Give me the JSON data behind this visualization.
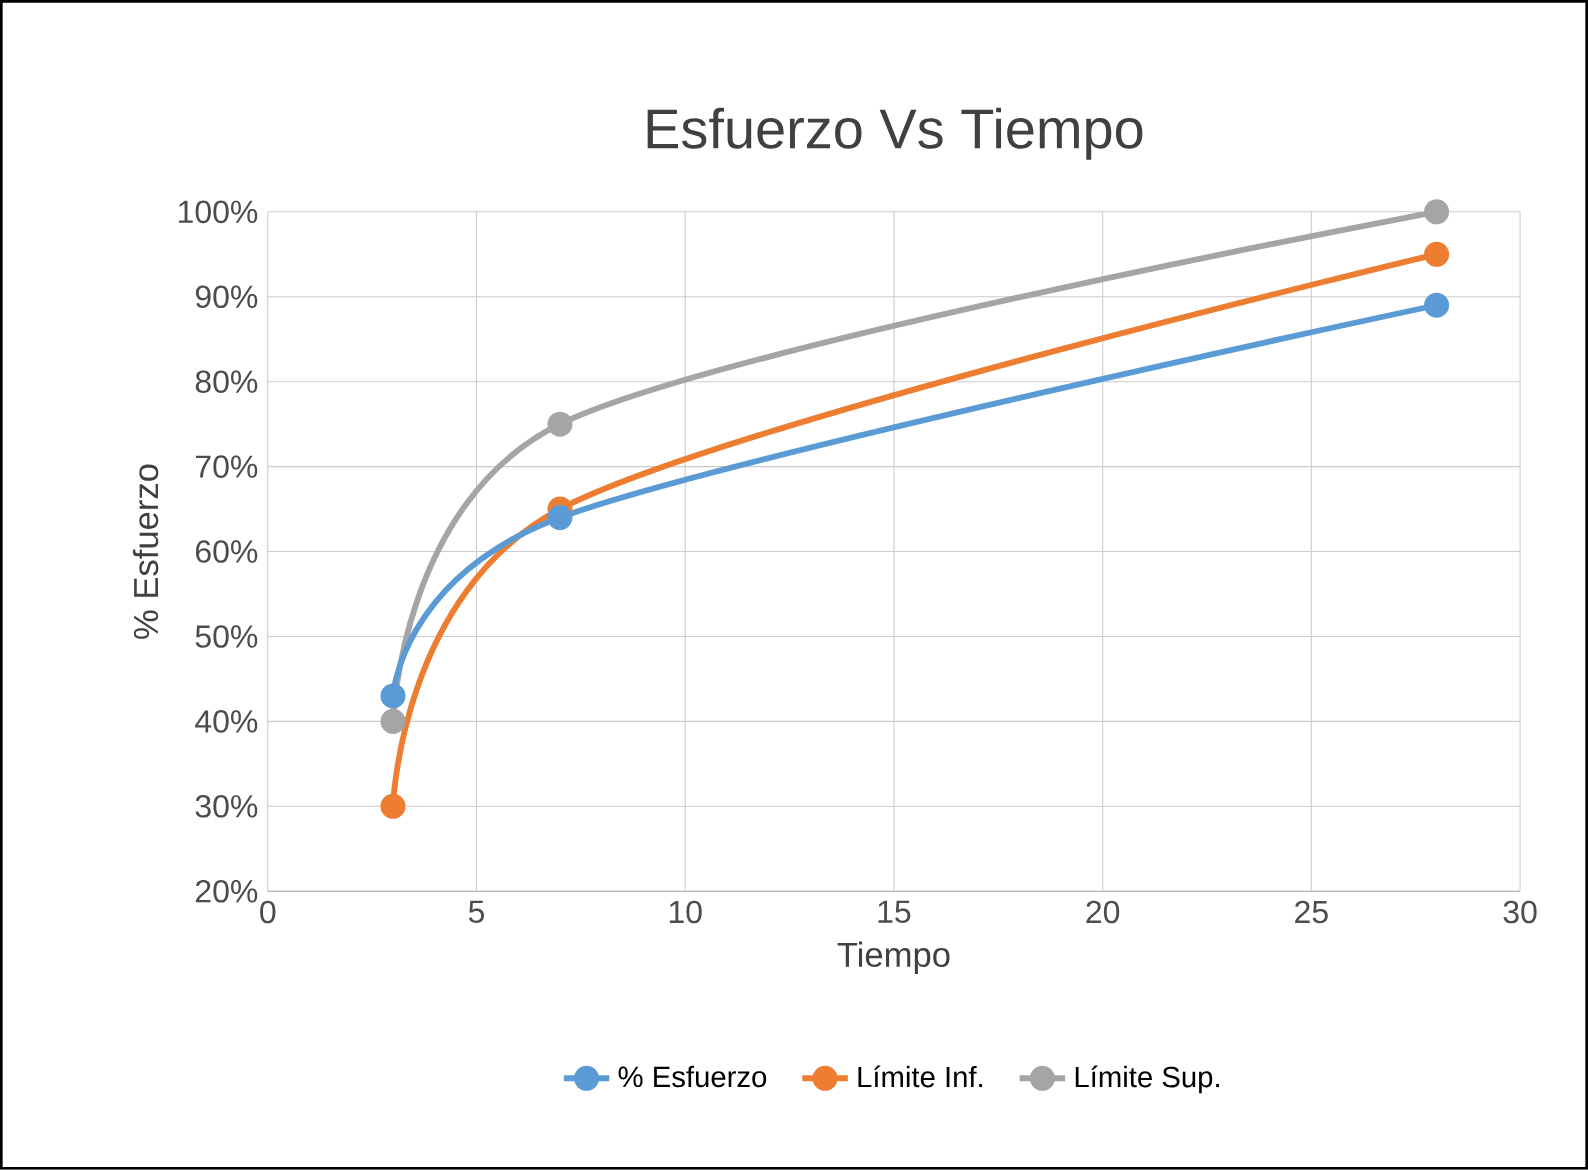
{
  "chart_data": {
    "type": "line",
    "title": "Esfuerzo Vs Tiempo",
    "xlabel": "Tiempo",
    "ylabel": "% Esfuerzo",
    "xlim": [
      0,
      30
    ],
    "xticks": [
      0,
      5,
      10,
      15,
      20,
      25,
      30
    ],
    "ylim": [
      20,
      100
    ],
    "yticks": [
      {
        "value": 20,
        "label": "20%"
      },
      {
        "value": 30,
        "label": "30%"
      },
      {
        "value": 40,
        "label": "40%"
      },
      {
        "value": 50,
        "label": "50%"
      },
      {
        "value": 60,
        "label": "60%"
      },
      {
        "value": 70,
        "label": "70%"
      },
      {
        "value": 80,
        "label": "80%"
      },
      {
        "value": 90,
        "label": "90%"
      },
      {
        "value": 100,
        "label": "100%"
      }
    ],
    "x": [
      3,
      7,
      28
    ],
    "series": [
      {
        "name": "% Esfuerzo",
        "color": "#5b9bd5",
        "values": [
          43,
          64,
          89
        ]
      },
      {
        "name": "Límite Inf.",
        "color": "#ed7d31",
        "values": [
          30,
          65,
          95
        ]
      },
      {
        "name": "Límite Sup.",
        "color": "#a5a5a5",
        "values": [
          40,
          75,
          100
        ]
      }
    ],
    "grid": true,
    "legend": "bottom",
    "marker": "circle",
    "line_style": "solid"
  }
}
